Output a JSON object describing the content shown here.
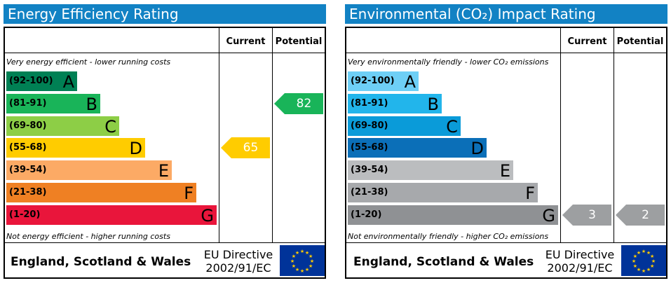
{
  "chart_data": [
    {
      "type": "bar",
      "title": "Energy Efficiency Rating",
      "top_caption": "Very energy efficient - lower running costs",
      "bottom_caption": "Not energy efficient - higher running costs",
      "columns": [
        "Current",
        "Potential"
      ],
      "bands": [
        {
          "range": "(92-100)",
          "letter": "A",
          "color": "#008054"
        },
        {
          "range": "(81-91)",
          "letter": "B",
          "color": "#19b459"
        },
        {
          "range": "(69-80)",
          "letter": "C",
          "color": "#8dce46"
        },
        {
          "range": "(55-68)",
          "letter": "D",
          "color": "#ffcc00"
        },
        {
          "range": "(39-54)",
          "letter": "E",
          "color": "#fcaa65"
        },
        {
          "range": "(21-38)",
          "letter": "F",
          "color": "#ef8023"
        },
        {
          "range": "(1-20)",
          "letter": "G",
          "color": "#e9153b"
        }
      ],
      "current": {
        "value": 65,
        "label": "65",
        "band": "D",
        "color": "#ffcc00"
      },
      "potential": {
        "value": 82,
        "label": "82",
        "band": "B",
        "color": "#19b459"
      },
      "footer_region": "England, Scotland & Wales",
      "footer_directive_1": "EU Directive",
      "footer_directive_2": "2002/91/EC"
    },
    {
      "type": "bar",
      "title": "Environmental (CO₂) Impact Rating",
      "top_caption": "Very environmentally friendly - lower CO₂ emissions",
      "bottom_caption": "Not environmentally friendly - higher CO₂ emissions",
      "columns": [
        "Current",
        "Potential"
      ],
      "bands": [
        {
          "range": "(92-100)",
          "letter": "A",
          "color": "#6ecff6"
        },
        {
          "range": "(81-91)",
          "letter": "B",
          "color": "#22b5eb"
        },
        {
          "range": "(69-80)",
          "letter": "C",
          "color": "#0a9bd9"
        },
        {
          "range": "(55-68)",
          "letter": "D",
          "color": "#0b6fb8"
        },
        {
          "range": "(39-54)",
          "letter": "E",
          "color": "#bbbdbf"
        },
        {
          "range": "(21-38)",
          "letter": "F",
          "color": "#a7a9ac"
        },
        {
          "range": "(1-20)",
          "letter": "G",
          "color": "#8f9194"
        }
      ],
      "current": {
        "value": 3,
        "label": "3",
        "band": "G",
        "color": "#9d9fa1"
      },
      "potential": {
        "value": 2,
        "label": "2",
        "band": "G",
        "color": "#9d9fa1"
      },
      "footer_region": "England, Scotland & Wales",
      "footer_directive_1": "EU Directive",
      "footer_directive_2": "2002/91/EC"
    }
  ]
}
